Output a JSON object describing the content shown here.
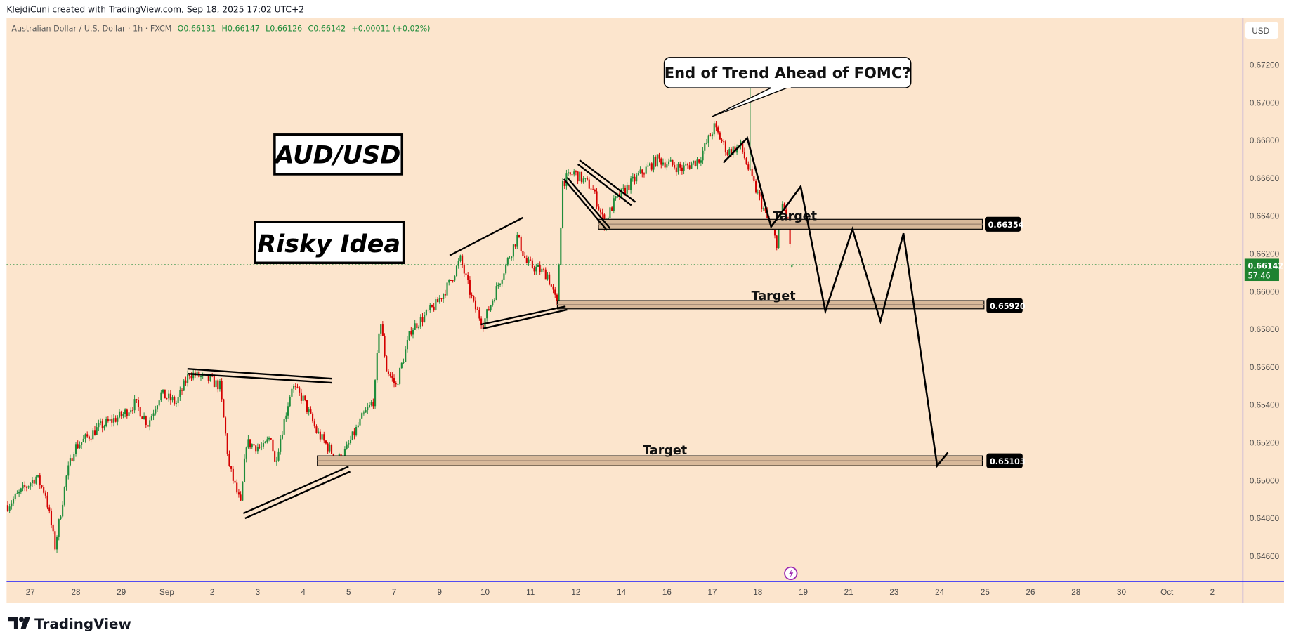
{
  "header": {
    "attribution": "KlejdiCuni created with TradingView.com, Sep 18, 2025 17:02 UTC+2"
  },
  "legend": {
    "symbol": "Australian Dollar / U.S. Dollar · 1h · FXCM",
    "open": "O0.66131",
    "high": "H0.66147",
    "low": "L0.66126",
    "close": "C0.66142",
    "change": "+0.00011 (+0.02%)"
  },
  "currency_button": "USD",
  "current_price": {
    "value": "0.66142",
    "countdown": "57:46"
  },
  "annotations": {
    "title": "AUD/USD",
    "subtitle": "Risky Idea",
    "callout": "End of Trend Ahead of FOMC?",
    "targets": [
      {
        "label": "Target",
        "price": "0.66354"
      },
      {
        "label": "Target",
        "price": "0.65920"
      },
      {
        "label": "Target",
        "price": "0.65103"
      }
    ]
  },
  "branding": {
    "logo_text": "TradingView"
  },
  "colors": {
    "background": "#fce5cd",
    "up": "#1e8c3a",
    "down": "#d40000",
    "zone_fill": "#d8b99a",
    "axis_line": "#1a1aff",
    "price_tag": "#1e8230",
    "event_icon": "#9c27b0"
  },
  "chart_data": {
    "type": "candlestick",
    "symbol": "AUD/USD",
    "interval": "1h",
    "ylim": [
      0.6452,
      0.6733
    ],
    "grid": false,
    "y_ticks": [
      "0.67200",
      "0.67000",
      "0.66800",
      "0.66600",
      "0.66400",
      "0.66200",
      "0.66000",
      "0.65800",
      "0.65600",
      "0.65400",
      "0.65200",
      "0.65000",
      "0.64800",
      "0.64600"
    ],
    "x_ticks": [
      {
        "label": "27",
        "date": "2025-08-27"
      },
      {
        "label": "28",
        "date": "2025-08-28"
      },
      {
        "label": "29",
        "date": "2025-08-29"
      },
      {
        "label": "Sep",
        "date": "2025-09-01"
      },
      {
        "label": "2",
        "date": "2025-09-02"
      },
      {
        "label": "3",
        "date": "2025-09-03"
      },
      {
        "label": "4",
        "date": "2025-09-04"
      },
      {
        "label": "5",
        "date": "2025-09-05"
      },
      {
        "label": "7",
        "date": "2025-09-07"
      },
      {
        "label": "9",
        "date": "2025-09-09"
      },
      {
        "label": "10",
        "date": "2025-09-10"
      },
      {
        "label": "11",
        "date": "2025-09-11"
      },
      {
        "label": "12",
        "date": "2025-09-12"
      },
      {
        "label": "14",
        "date": "2025-09-14"
      },
      {
        "label": "16",
        "date": "2025-09-16"
      },
      {
        "label": "17",
        "date": "2025-09-17"
      },
      {
        "label": "18",
        "date": "2025-09-18"
      },
      {
        "label": "19",
        "date": "2025-09-19"
      },
      {
        "label": "21",
        "date": "2025-09-21"
      },
      {
        "label": "23",
        "date": "2025-09-23"
      },
      {
        "label": "24",
        "date": "2025-09-24"
      },
      {
        "label": "25",
        "date": "2025-09-25"
      },
      {
        "label": "26",
        "date": "2025-09-26"
      },
      {
        "label": "28",
        "date": "2025-09-28"
      },
      {
        "label": "30",
        "date": "2025-09-30"
      },
      {
        "label": "Oct",
        "date": "2025-10-01"
      },
      {
        "label": "2",
        "date": "2025-10-02"
      }
    ],
    "price_path": [
      [
        "2025-08-26T12:00",
        0.6487
      ],
      [
        "2025-08-27T03:00",
        0.6502
      ],
      [
        "2025-08-27T08:00",
        0.6493
      ],
      [
        "2025-08-27T13:00",
        0.6465
      ],
      [
        "2025-08-27T19:00",
        0.6502
      ],
      [
        "2025-08-27T23:00",
        0.6517
      ],
      [
        "2025-08-28T12:00",
        0.6528
      ],
      [
        "2025-08-29T03:00",
        0.6535
      ],
      [
        "2025-08-29T22:00",
        0.6541
      ],
      [
        "2025-08-30T18:00",
        0.653
      ],
      [
        "2025-08-31T14:00",
        0.6546
      ],
      [
        "2025-09-01T05:00",
        0.6541
      ],
      [
        "2025-09-01T12:00",
        0.6557
      ],
      [
        "2025-09-01T23:00",
        0.6553
      ],
      [
        "2025-09-02T04:00",
        0.655
      ],
      [
        "2025-09-02T09:00",
        0.6507
      ],
      [
        "2025-09-02T15:00",
        0.6487
      ],
      [
        "2025-09-02T18:00",
        0.652
      ],
      [
        "2025-09-03T03:00",
        0.6517
      ],
      [
        "2025-09-03T07:00",
        0.6524
      ],
      [
        "2025-09-03T09:00",
        0.6509
      ],
      [
        "2025-09-03T18:00",
        0.655
      ],
      [
        "2025-09-04T00:00",
        0.6543
      ],
      [
        "2025-09-04T07:00",
        0.6526
      ],
      [
        "2025-09-04T18:00",
        0.6511
      ],
      [
        "2025-09-04T22:00",
        0.6515
      ],
      [
        "2025-09-05T14:00",
        0.6533
      ],
      [
        "2025-09-06T03:00",
        0.6543
      ],
      [
        "2025-09-06T09:00",
        0.6587
      ],
      [
        "2025-09-06T16:00",
        0.6559
      ],
      [
        "2025-09-07T02:00",
        0.655
      ],
      [
        "2025-09-07T18:00",
        0.658
      ],
      [
        "2025-09-08T20:00",
        0.6593
      ],
      [
        "2025-09-09T05:00",
        0.6604
      ],
      [
        "2025-09-09T11:00",
        0.6617
      ],
      [
        "2025-09-09T18:00",
        0.6593
      ],
      [
        "2025-09-09T23:00",
        0.6583
      ],
      [
        "2025-09-10T09:00",
        0.6609
      ],
      [
        "2025-09-10T17:00",
        0.6629
      ],
      [
        "2025-09-10T22:00",
        0.6615
      ],
      [
        "2025-09-11T09:00",
        0.6609
      ],
      [
        "2025-09-11T14:00",
        0.6593
      ],
      [
        "2025-09-11T17:00",
        0.6658
      ],
      [
        "2025-09-11T23:00",
        0.6663
      ],
      [
        "2025-09-12T17:00",
        0.6655
      ],
      [
        "2025-09-13T06:00",
        0.6636
      ],
      [
        "2025-09-13T17:00",
        0.6648
      ],
      [
        "2025-09-14T17:00",
        0.6661
      ],
      [
        "2025-09-15T14:00",
        0.667
      ],
      [
        "2025-09-16T08:00",
        0.6665
      ],
      [
        "2025-09-16T17:00",
        0.667
      ],
      [
        "2025-09-17T01:00",
        0.6687
      ],
      [
        "2025-09-17T08:00",
        0.6674
      ],
      [
        "2025-09-17T15:00",
        0.6677
      ],
      [
        "2025-09-17T21:00",
        0.6659
      ],
      [
        "2025-09-18T04:00",
        0.6641
      ],
      [
        "2025-09-18T10:00",
        0.6626
      ],
      [
        "2025-09-18T13:00",
        0.6646
      ],
      [
        "2025-09-18T16:00",
        0.6637
      ],
      [
        "2025-09-18T18:00",
        0.66142
      ]
    ],
    "fomc_spike": {
      "time": "2025-09-17T20:00",
      "high": 0.6708
    },
    "last": {
      "open": 0.66131,
      "high": 0.66147,
      "low": 0.66126,
      "close": 0.66142
    },
    "horizontal_levels": [
      0.66354,
      0.6592,
      0.65103
    ]
  }
}
